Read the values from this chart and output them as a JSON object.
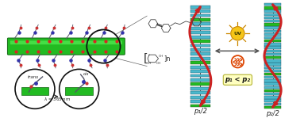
{
  "bg_color": "#ffffff",
  "fig_width": 3.78,
  "fig_height": 1.49,
  "dpi": 100,
  "rod_color": "#22bb22",
  "rod_edge": "#116611",
  "rod_highlight": "#55ee55",
  "teal": "#4ab8cc",
  "green_layer": "#22bb22",
  "helix_red": "#cc2222",
  "label_p1": "p₁/2",
  "label_p2": "p₂/2",
  "label_ineq": "p₁ < p₂",
  "sun_color": "#f5c518",
  "sun_edge": "#cc8800",
  "heat_color": "#dd4400",
  "axis_color": "#333333",
  "mol_color": "#555566",
  "red_atom": "#cc3333",
  "blue_atom": "#3333aa"
}
